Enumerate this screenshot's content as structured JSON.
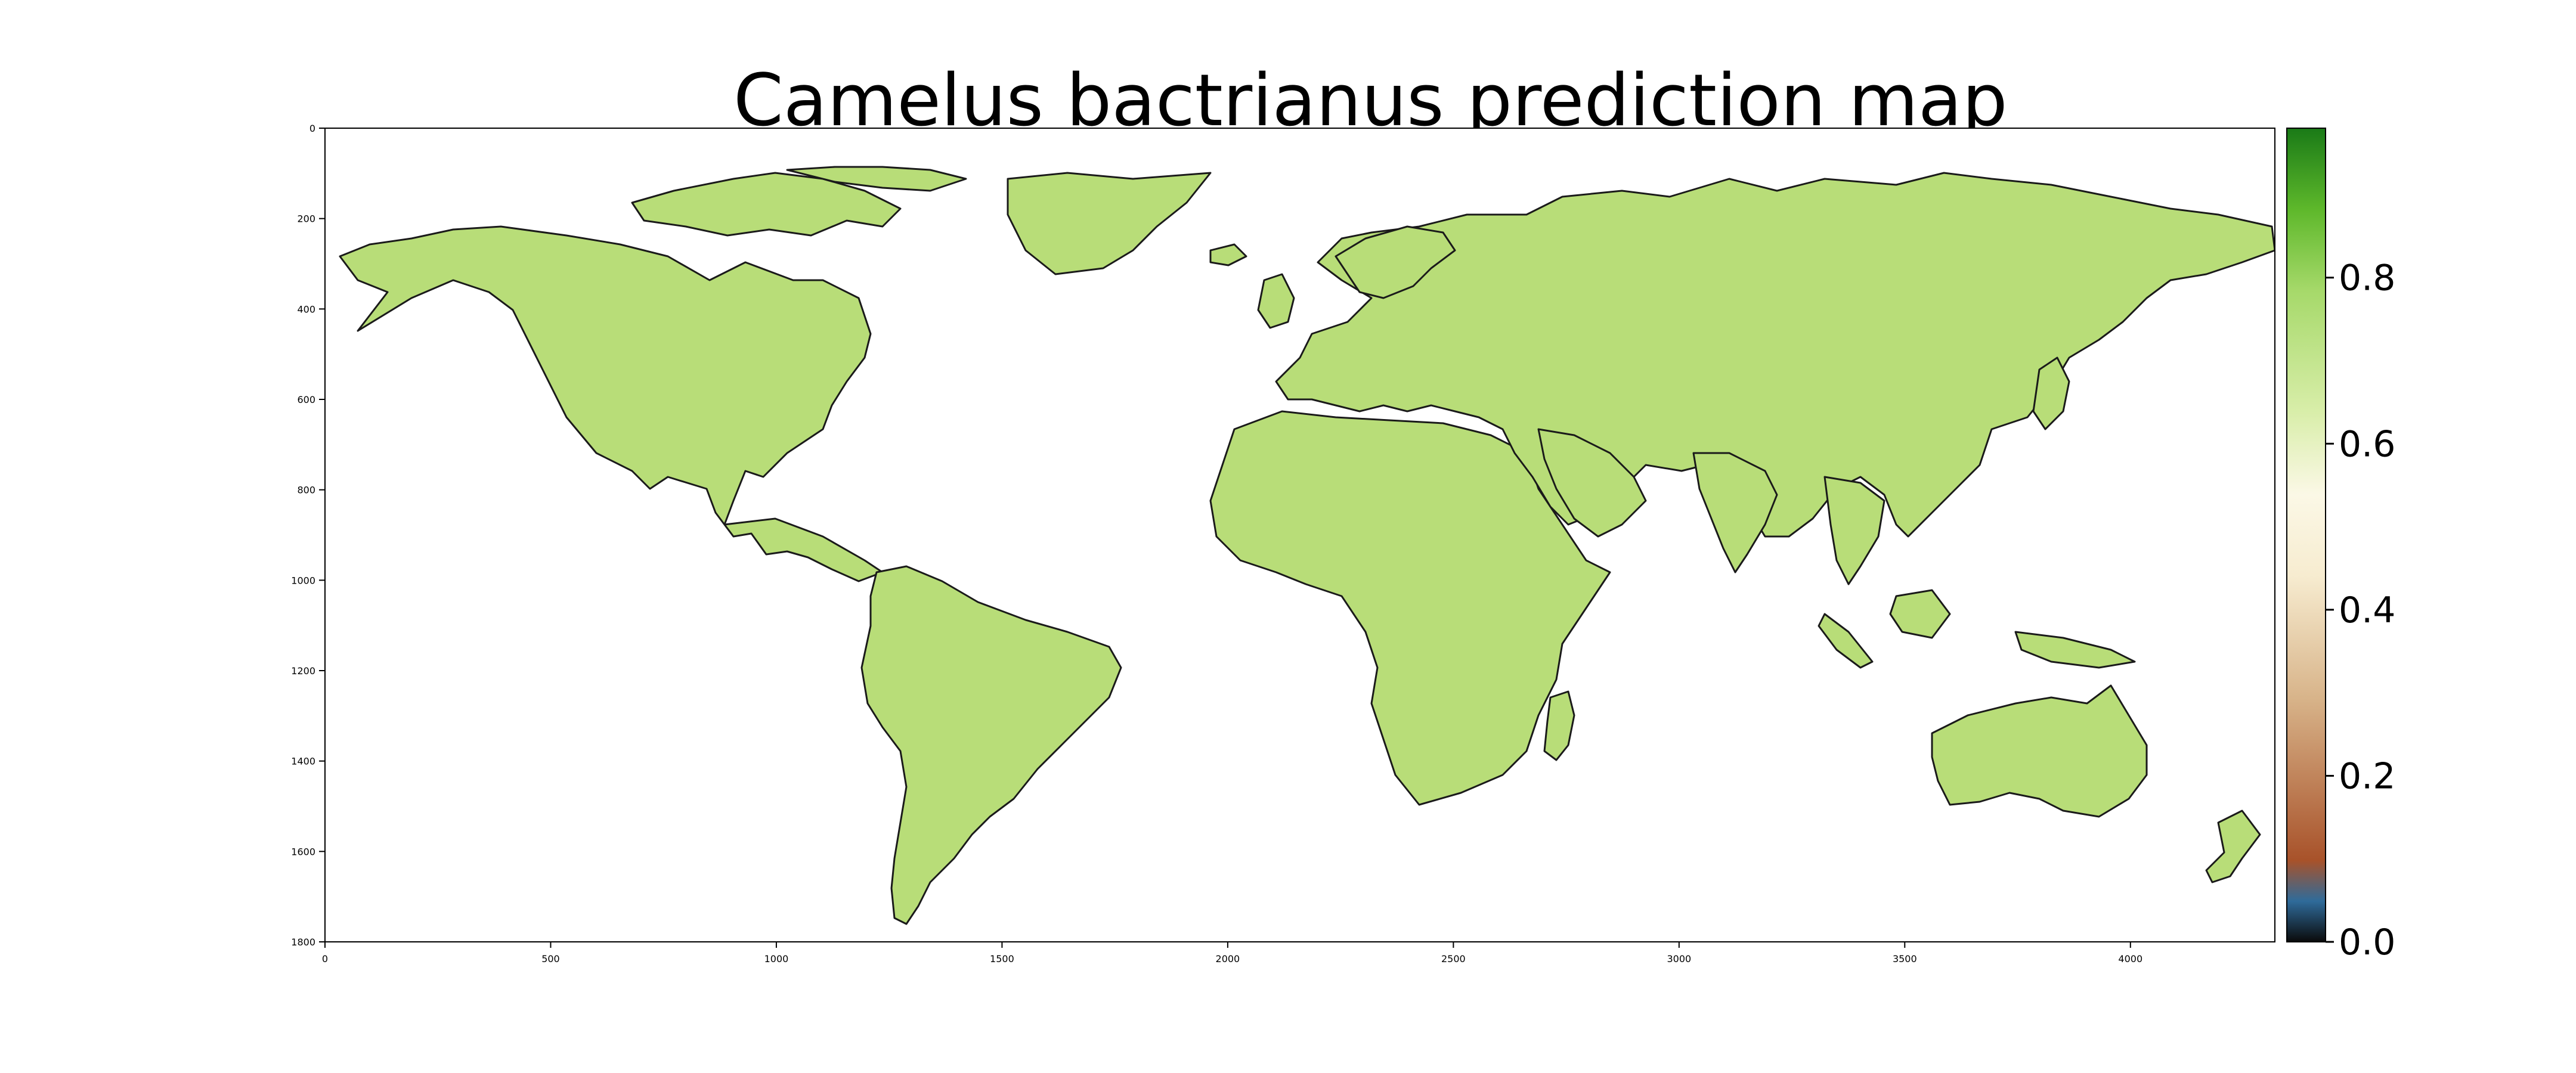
{
  "title": "Camelus bactrianus prediction map",
  "axes": {
    "x_ticks": [
      "0",
      "500",
      "1000",
      "1500",
      "2000",
      "2500",
      "3000",
      "3500",
      "4000"
    ],
    "y_ticks": [
      "0",
      "200",
      "400",
      "600",
      "800",
      "1000",
      "1200",
      "1400",
      "1600",
      "1800"
    ],
    "x_range": [
      0,
      4320
    ],
    "y_range": [
      0,
      1800
    ]
  },
  "colorbar": {
    "ticks": [
      "0.0",
      "0.2",
      "0.4",
      "0.6",
      "0.8"
    ],
    "range": [
      0.0,
      0.98
    ],
    "colormap": [
      "#0a0a0a",
      "#2f6b9a",
      "#a8522a",
      "#d8b48a",
      "#f7ecd0",
      "#fbf8e6",
      "#d9eeaa",
      "#a6d96a",
      "#5eb82b",
      "#1a7a17"
    ]
  },
  "map": {
    "land_color": "#b8dd78",
    "land_dark_color": "#a4d35f",
    "coast_color": "#000000",
    "background": "#ffffff"
  }
}
